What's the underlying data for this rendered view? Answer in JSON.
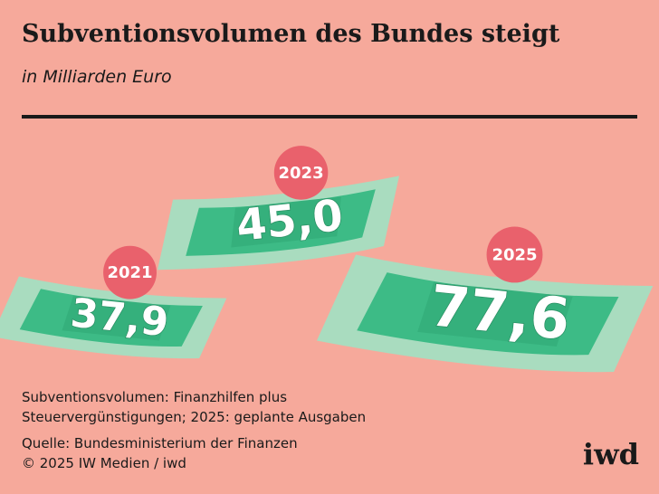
{
  "chart_data": {
    "type": "pictogram",
    "title": "Subventionsvolumen des Bundes steigt",
    "subtitle": "in Milliarden Euro",
    "categories": [
      "2021",
      "2023",
      "2025"
    ],
    "values": [
      37.9,
      45.0,
      77.6
    ],
    "value_labels": [
      "37,9",
      "45,0",
      "77,6"
    ],
    "color": "#3dbb86",
    "note": "Subventionsvolumen: Finanzhilfen plus Steuervergünstigungen; 2025: geplante Ausgaben",
    "source": "Quelle: Bundesministerium der Finanzen",
    "copyright": "© 2025 IW Medien / iwd",
    "logo": "iwd"
  }
}
